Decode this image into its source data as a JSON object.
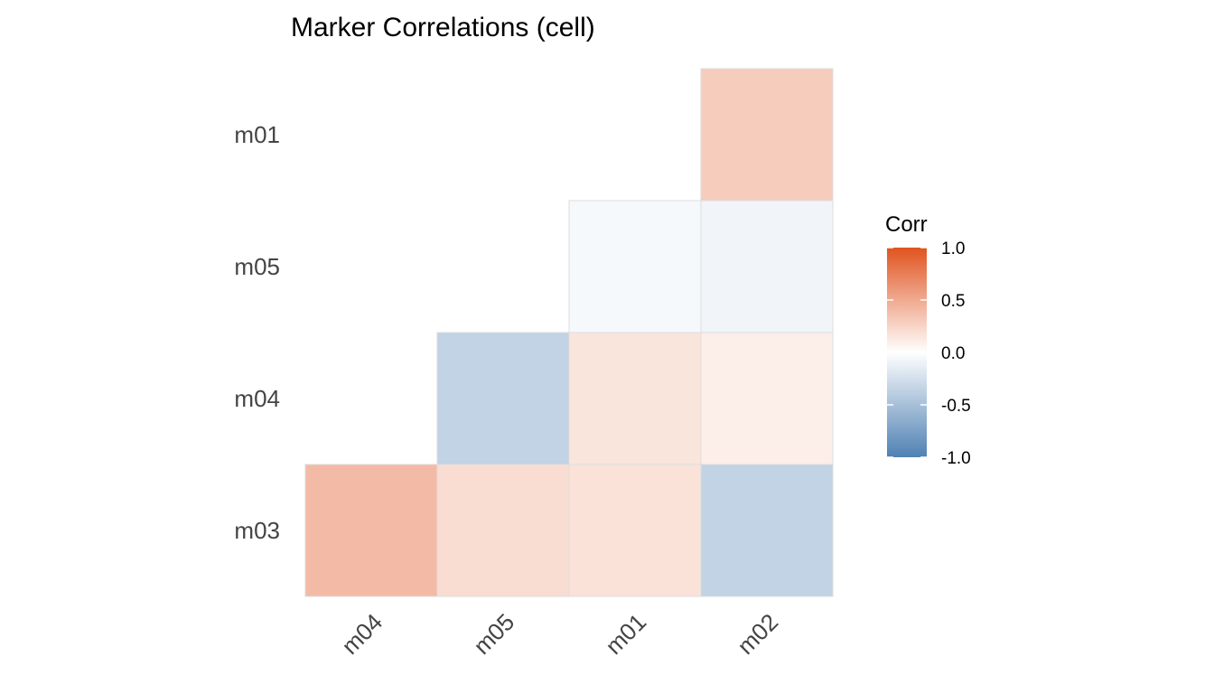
{
  "chart_data": {
    "type": "heatmap",
    "title": "Marker Correlations (cell)",
    "x_categories": [
      "m04",
      "m05",
      "m01",
      "m02"
    ],
    "y_categories": [
      "m01",
      "m05",
      "m04",
      "m03"
    ],
    "cells": [
      {
        "x": "m02",
        "y": "m01",
        "value": 0.3
      },
      {
        "x": "m01",
        "y": "m05",
        "value": -0.05
      },
      {
        "x": "m02",
        "y": "m05",
        "value": -0.08
      },
      {
        "x": "m05",
        "y": "m04",
        "value": -0.35
      },
      {
        "x": "m01",
        "y": "m04",
        "value": 0.15
      },
      {
        "x": "m02",
        "y": "m04",
        "value": 0.1
      },
      {
        "x": "m04",
        "y": "m03",
        "value": 0.4
      },
      {
        "x": "m05",
        "y": "m03",
        "value": 0.2
      },
      {
        "x": "m01",
        "y": "m03",
        "value": 0.17
      },
      {
        "x": "m02",
        "y": "m03",
        "value": -0.35
      }
    ],
    "legend": {
      "title": "Corr",
      "placement": "right",
      "range": [
        -1.0,
        1.0
      ],
      "ticks": [
        "1.0",
        "0.5",
        "0.0",
        "-0.5",
        "-1.0"
      ],
      "tick_values": [
        1.0,
        0.5,
        0.0,
        -0.5,
        -1.0
      ]
    },
    "colors": {
      "low": "#4f81b3",
      "mid": "#ffffff",
      "high": "#e0541f"
    },
    "grid": false
  }
}
